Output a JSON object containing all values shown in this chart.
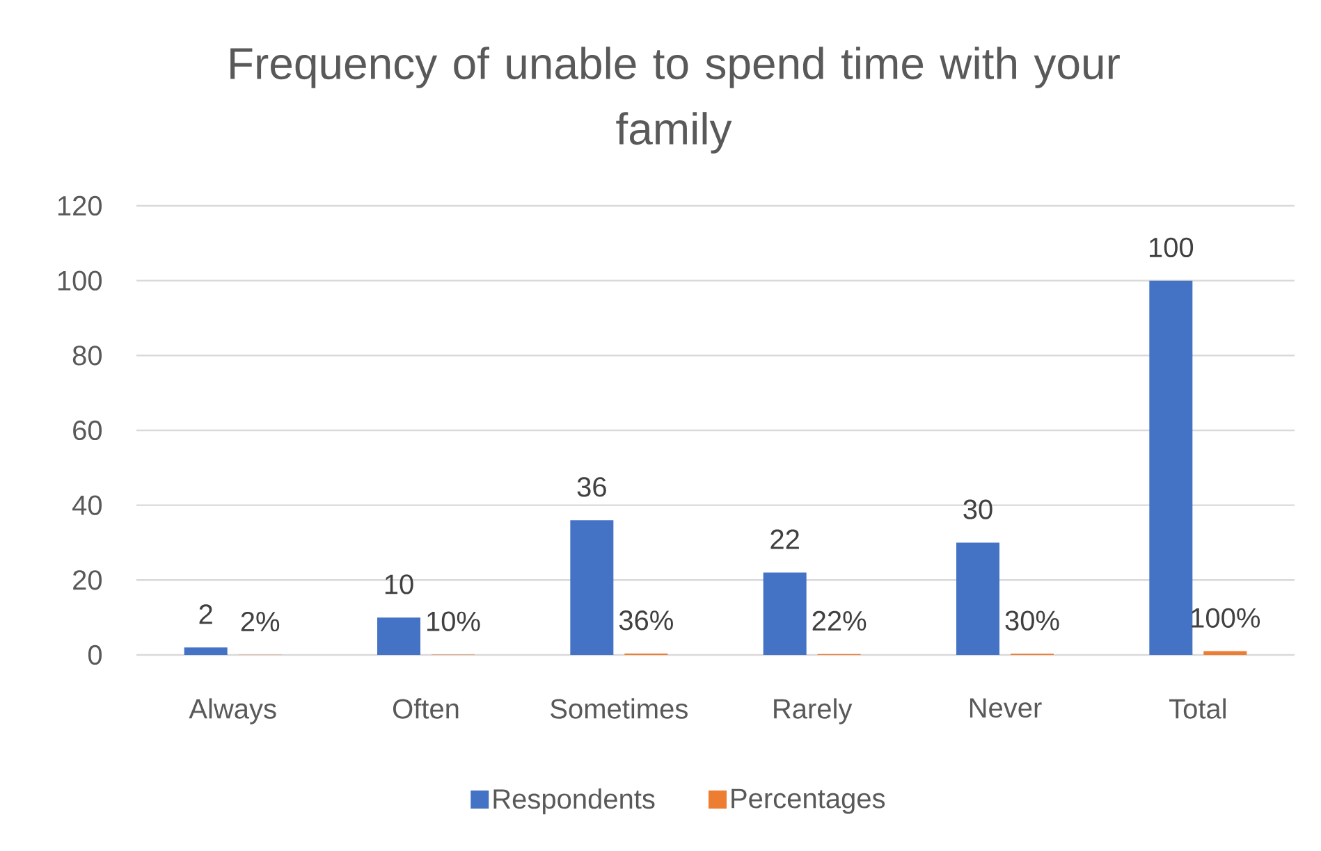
{
  "chart_data": {
    "type": "bar",
    "title": "Frequency of unable to spend time with your family",
    "categories": [
      "Always",
      "Often",
      "Sometimes",
      "Rarely",
      "Never",
      "Total"
    ],
    "series": [
      {
        "name": "Respondents",
        "color": "#4472c4",
        "values": [
          2,
          10,
          36,
          22,
          30,
          100
        ],
        "value_labels": [
          "2",
          "10",
          "36",
          "22",
          "30",
          "100"
        ]
      },
      {
        "name": "Percentages",
        "color": "#ed7d31",
        "values": [
          0.02,
          0.1,
          0.36,
          0.22,
          0.3,
          1
        ],
        "value_labels": [
          "2%",
          "10%",
          "36%",
          "22%",
          "30%",
          "100%"
        ]
      }
    ],
    "ylim": [
      0,
      120
    ],
    "yticks": [
      0,
      20,
      40,
      60,
      80,
      100,
      120
    ],
    "grid": "y",
    "legend": "bottom"
  }
}
